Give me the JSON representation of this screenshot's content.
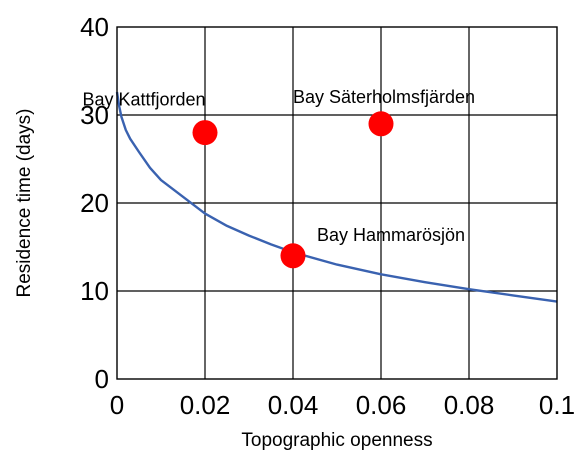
{
  "chart_data": {
    "type": "scatter",
    "title": "",
    "xlabel": "Topographic openness",
    "ylabel": "Residence time (days)",
    "xlim": [
      0,
      0.1
    ],
    "ylim": [
      0,
      40
    ],
    "grid": true,
    "x_ticks": [
      0,
      0.02,
      0.04,
      0.06,
      0.08,
      0.1
    ],
    "x_tick_labels": [
      "0",
      "0.02",
      "0.04",
      "0.06",
      "0.08",
      "0.1"
    ],
    "y_ticks": [
      0,
      10,
      20,
      30,
      40
    ],
    "y_tick_labels": [
      "0",
      "10",
      "20",
      "30",
      "40"
    ],
    "points": [
      {
        "label": "Bay Kattfjorden",
        "x": 0.02,
        "y": 28,
        "label_anchor": "above-left"
      },
      {
        "label": "Bay Säterholmsfjärden",
        "x": 0.06,
        "y": 29,
        "label_anchor": "above"
      },
      {
        "label": "Bay Hammarösjön",
        "x": 0.04,
        "y": 14,
        "label_anchor": "above-right"
      }
    ],
    "point_color": "#ff0000",
    "curve": {
      "color": "#3a62b0",
      "x": [
        0,
        0.0005,
        0.001,
        0.002,
        0.003,
        0.005,
        0.0075,
        0.01,
        0.015,
        0.02,
        0.025,
        0.03,
        0.035,
        0.04,
        0.05,
        0.06,
        0.07,
        0.08,
        0.09,
        0.1
      ],
      "y": [
        32.6,
        31.0,
        29.8,
        28.3,
        27.3,
        25.8,
        24.0,
        22.6,
        20.7,
        18.8,
        17.4,
        16.3,
        15.3,
        14.4,
        13.0,
        11.9,
        11.0,
        10.2,
        9.5,
        8.8
      ]
    }
  }
}
